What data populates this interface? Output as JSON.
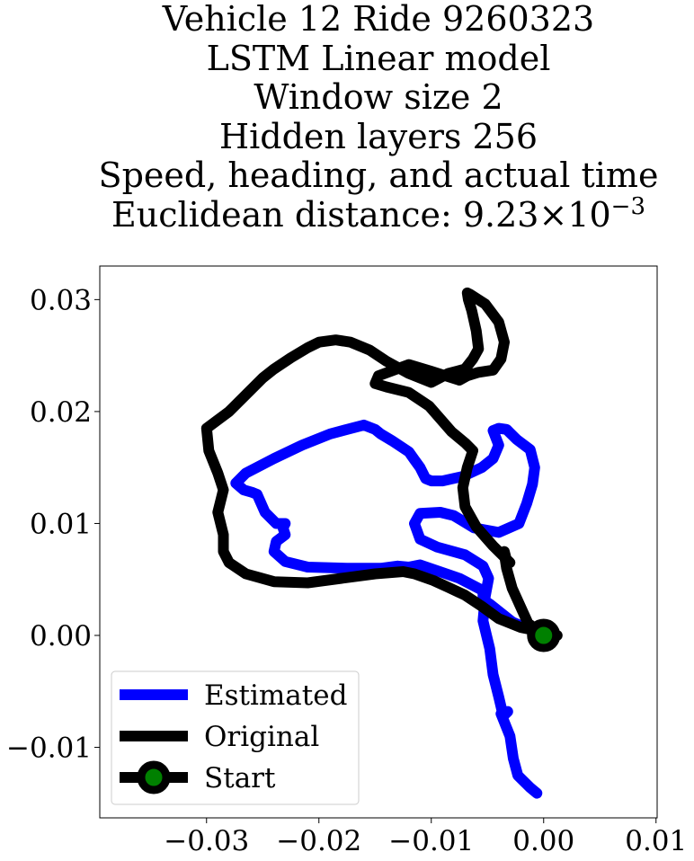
{
  "title": {
    "lines": [
      "Vehicle 12 Ride 9260323",
      "LSTM Linear model",
      "Window size 2",
      "Hidden layers 256",
      "Speed, heading, and actual time"
    ],
    "distance_prefix": "Euclidean distance: 9.23",
    "distance_times": "×",
    "distance_base": "10",
    "distance_exponent": "−3"
  },
  "chart_data": {
    "type": "line",
    "xlim": [
      -0.0395,
      0.0101
    ],
    "ylim": [
      -0.0163,
      0.033
    ],
    "grid": false,
    "legend_position": "lower-left",
    "xticks": [
      {
        "value": -0.03,
        "label": "−0.03"
      },
      {
        "value": -0.02,
        "label": "−0.02"
      },
      {
        "value": -0.01,
        "label": "−0.01"
      },
      {
        "value": 0.0,
        "label": "0.00"
      },
      {
        "value": 0.01,
        "label": "0.01"
      }
    ],
    "yticks": [
      {
        "value": -0.01,
        "label": "−0.01"
      },
      {
        "value": 0.0,
        "label": "0.00"
      },
      {
        "value": 0.01,
        "label": "0.01"
      },
      {
        "value": 0.02,
        "label": "0.02"
      },
      {
        "value": 0.03,
        "label": "0.03"
      }
    ],
    "series": [
      {
        "name": "Estimated",
        "color": "#0000ff",
        "points": [
          [
            0.0,
            0.0
          ],
          [
            -0.0028,
            0.0012
          ],
          [
            -0.0048,
            0.0028
          ],
          [
            -0.0054,
            0.0032
          ],
          [
            -0.0054,
            0.004
          ],
          [
            -0.0075,
            0.0051
          ],
          [
            -0.011,
            0.0063
          ],
          [
            -0.012,
            0.0061
          ],
          [
            -0.013,
            0.0062
          ],
          [
            -0.0145,
            0.006
          ],
          [
            -0.0175,
            0.006
          ],
          [
            -0.021,
            0.0061
          ],
          [
            -0.023,
            0.0066
          ],
          [
            -0.024,
            0.0075
          ],
          [
            -0.0238,
            0.0084
          ],
          [
            -0.023,
            0.009
          ],
          [
            -0.0232,
            0.0096
          ],
          [
            -0.023,
            0.01
          ],
          [
            -0.0238,
            0.01
          ],
          [
            -0.0248,
            0.011
          ],
          [
            -0.0255,
            0.0126
          ],
          [
            -0.026,
            0.0128
          ],
          [
            -0.0267,
            0.013
          ],
          [
            -0.0274,
            0.0136
          ],
          [
            -0.0265,
            0.0145
          ],
          [
            -0.024,
            0.0158
          ],
          [
            -0.0215,
            0.017
          ],
          [
            -0.019,
            0.018
          ],
          [
            -0.0175,
            0.0184
          ],
          [
            -0.016,
            0.0188
          ],
          [
            -0.015,
            0.0184
          ],
          [
            -0.0145,
            0.018
          ],
          [
            -0.0135,
            0.0174
          ],
          [
            -0.012,
            0.0164
          ],
          [
            -0.0115,
            0.0157
          ],
          [
            -0.011,
            0.015
          ],
          [
            -0.0105,
            0.014
          ],
          [
            -0.01,
            0.0138
          ],
          [
            -0.009,
            0.0138
          ],
          [
            -0.0072,
            0.0142
          ],
          [
            -0.0055,
            0.015
          ],
          [
            -0.0045,
            0.0158
          ],
          [
            -0.004,
            0.017
          ],
          [
            -0.0045,
            0.0183
          ],
          [
            -0.004,
            0.0185
          ],
          [
            -0.0033,
            0.0184
          ],
          [
            -0.003,
            0.0181
          ],
          [
            -0.0024,
            0.0175
          ],
          [
            -0.0012,
            0.0166
          ],
          [
            -0.0008,
            0.015
          ],
          [
            -0.001,
            0.0135
          ],
          [
            -0.0015,
            0.0118
          ],
          [
            -0.0022,
            0.01
          ],
          [
            -0.004,
            0.0092
          ],
          [
            -0.0062,
            0.0096
          ],
          [
            -0.008,
            0.0107
          ],
          [
            -0.0092,
            0.011
          ],
          [
            -0.011,
            0.0109
          ],
          [
            -0.0115,
            0.01
          ],
          [
            -0.011,
            0.0086
          ],
          [
            -0.0095,
            0.0079
          ],
          [
            -0.007,
            0.0072
          ],
          [
            -0.0054,
            0.0062
          ],
          [
            -0.0049,
            0.0051
          ],
          [
            -0.0052,
            0.0035
          ],
          [
            -0.0054,
            0.0013
          ],
          [
            -0.0048,
            -0.0012
          ],
          [
            -0.0045,
            -0.0035
          ],
          [
            -0.004,
            -0.0055
          ],
          [
            -0.0036,
            -0.0072
          ],
          [
            -0.0032,
            -0.0068
          ],
          [
            -0.0038,
            -0.007
          ],
          [
            -0.003,
            -0.009
          ],
          [
            -0.0027,
            -0.011
          ],
          [
            -0.0023,
            -0.0125
          ],
          [
            -0.0012,
            -0.0136
          ],
          [
            -0.0006,
            -0.0141
          ]
        ]
      },
      {
        "name": "Original",
        "color": "#000000",
        "points": [
          [
            0.0,
            0.0
          ],
          [
            -0.0014,
            0.0011
          ],
          [
            -0.0028,
            0.0042
          ],
          [
            -0.0033,
            0.006
          ],
          [
            -0.0035,
            0.0073
          ],
          [
            -0.0035,
            0.0075
          ],
          [
            -0.0033,
            0.0067
          ],
          [
            -0.003,
            0.0065
          ],
          [
            -0.0045,
            0.008
          ],
          [
            -0.006,
            0.0097
          ],
          [
            -0.007,
            0.0115
          ],
          [
            -0.0072,
            0.0132
          ],
          [
            -0.0068,
            0.015
          ],
          [
            -0.0063,
            0.0165
          ],
          [
            -0.007,
            0.0172
          ],
          [
            -0.0082,
            0.0182
          ],
          [
            -0.0102,
            0.0205
          ],
          [
            -0.012,
            0.0217
          ],
          [
            -0.014,
            0.0222
          ],
          [
            -0.015,
            0.0225
          ],
          [
            -0.0147,
            0.0232
          ],
          [
            -0.012,
            0.0242
          ],
          [
            -0.01,
            0.0236
          ],
          [
            -0.0075,
            0.0228
          ],
          [
            -0.0068,
            0.0232
          ],
          [
            -0.0058,
            0.0235
          ],
          [
            -0.0045,
            0.0237
          ],
          [
            -0.0038,
            0.0247
          ],
          [
            -0.0035,
            0.0262
          ],
          [
            -0.004,
            0.028
          ],
          [
            -0.0052,
            0.0296
          ],
          [
            -0.0066,
            0.0305
          ],
          [
            -0.0068,
            0.0306
          ],
          [
            -0.0067,
            0.03
          ],
          [
            -0.0064,
            0.029
          ],
          [
            -0.006,
            0.0272
          ],
          [
            -0.0058,
            0.0256
          ],
          [
            -0.0063,
            0.0247
          ],
          [
            -0.007,
            0.0238
          ],
          [
            -0.0085,
            0.0234
          ],
          [
            -0.01,
            0.0226
          ],
          [
            -0.012,
            0.0234
          ],
          [
            -0.014,
            0.0245
          ],
          [
            -0.0155,
            0.0255
          ],
          [
            -0.0172,
            0.0262
          ],
          [
            -0.0185,
            0.0264
          ],
          [
            -0.02,
            0.0262
          ],
          [
            -0.021,
            0.0257
          ],
          [
            -0.0225,
            0.0248
          ],
          [
            -0.024,
            0.0238
          ],
          [
            -0.025,
            0.023
          ],
          [
            -0.0265,
            0.0215
          ],
          [
            -0.028,
            0.02
          ],
          [
            -0.03,
            0.0185
          ],
          [
            -0.0298,
            0.0165
          ],
          [
            -0.029,
            0.0145
          ],
          [
            -0.0285,
            0.013
          ],
          [
            -0.029,
            0.011
          ],
          [
            -0.0285,
            0.009
          ],
          [
            -0.0285,
            0.0075
          ],
          [
            -0.028,
            0.0065
          ],
          [
            -0.0265,
            0.0055
          ],
          [
            -0.024,
            0.0048
          ],
          [
            -0.021,
            0.0047
          ],
          [
            -0.018,
            0.0051
          ],
          [
            -0.015,
            0.0055
          ],
          [
            -0.0125,
            0.0057
          ],
          [
            -0.0115,
            0.0055
          ],
          [
            -0.0098,
            0.0049
          ],
          [
            -0.0085,
            0.0043
          ],
          [
            -0.007,
            0.0036
          ],
          [
            -0.0055,
            0.0026
          ],
          [
            -0.004,
            0.0015
          ],
          [
            -0.002,
            0.0007
          ],
          [
            -0.001,
            0.0005
          ],
          [
            0.0,
            0.0
          ],
          [
            0.0012,
            0.0
          ]
        ]
      }
    ],
    "start_point": {
      "x": 0.0,
      "y": 0.0
    },
    "legend": [
      {
        "label": "Estimated",
        "color": "#0000ff"
      },
      {
        "label": "Original",
        "color": "#000000"
      },
      {
        "label": "Start",
        "color": "#000000",
        "marker_color": "#008000"
      }
    ]
  }
}
